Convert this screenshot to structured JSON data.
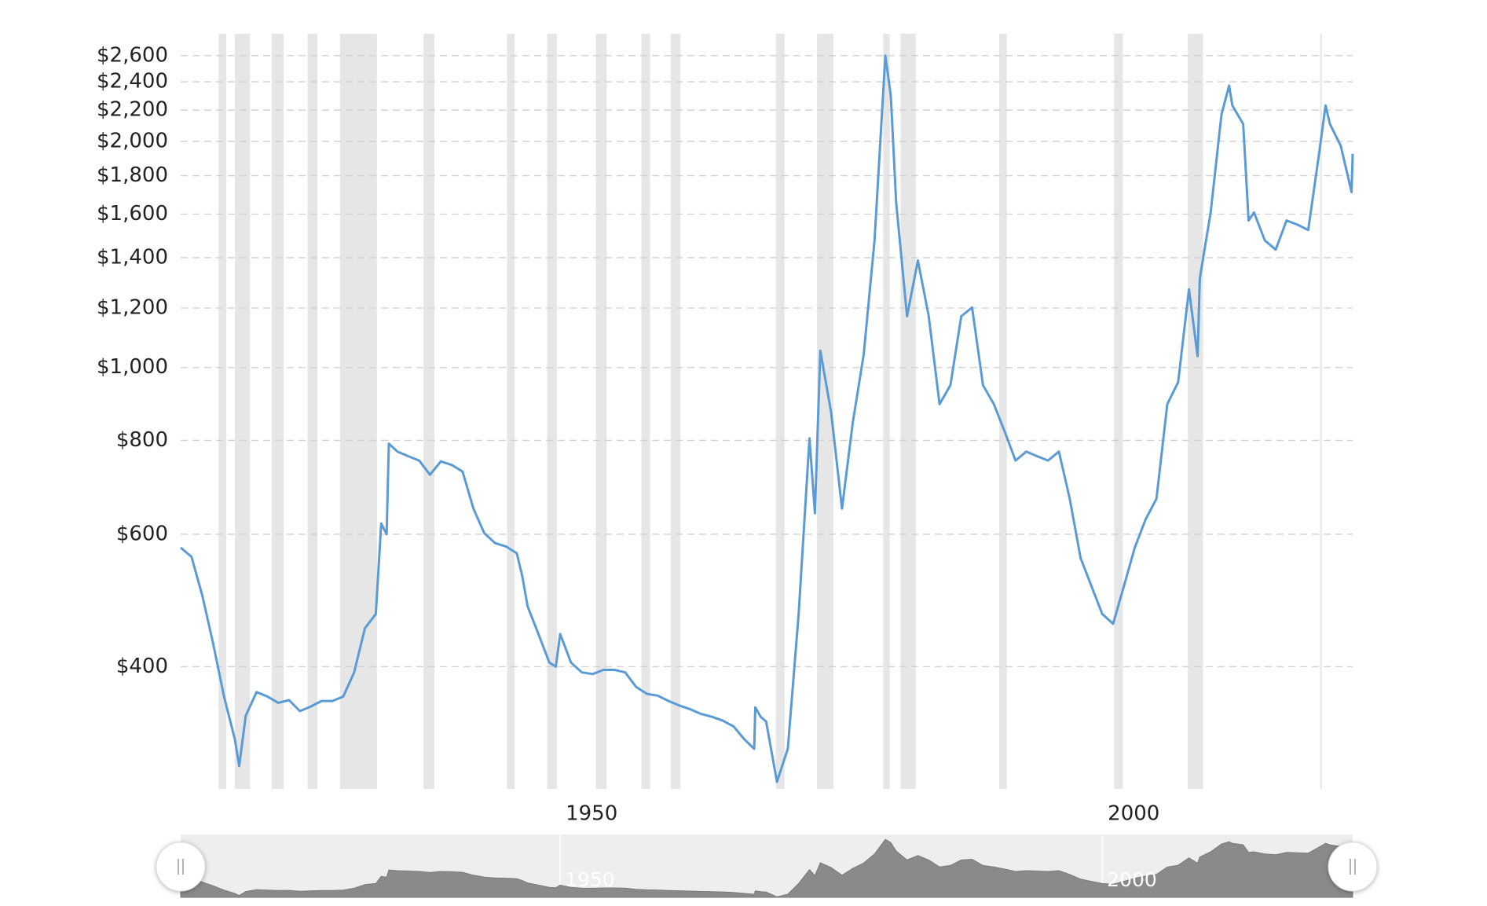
{
  "chart_data": {
    "type": "line",
    "color": "#5b9bd5",
    "log_scale": true,
    "grid": true,
    "xlim": [
      1915,
      2023.1
    ],
    "xticks": [
      1950,
      2000
    ],
    "ylim": [
      275,
      2780
    ],
    "yticks": [
      {
        "value": 400,
        "label": "$400"
      },
      {
        "value": 600,
        "label": "$600"
      },
      {
        "value": 800,
        "label": "$800"
      },
      {
        "value": 1000,
        "label": "$1,000"
      },
      {
        "value": 1200,
        "label": "$1,200"
      },
      {
        "value": 1400,
        "label": "$1,400"
      },
      {
        "value": 1600,
        "label": "$1,600"
      },
      {
        "value": 1800,
        "label": "$1,800"
      },
      {
        "value": 2000,
        "label": "$2,000"
      },
      {
        "value": 2200,
        "label": "$2,200"
      },
      {
        "value": 2400,
        "label": "$2,400"
      },
      {
        "value": 2600,
        "label": "$2,600"
      }
    ],
    "recession_color": "#e6e6e6",
    "recessions": [
      [
        1918.5,
        1919.2
      ],
      [
        1920.0,
        1921.4
      ],
      [
        1923.4,
        1924.5
      ],
      [
        1926.7,
        1927.6
      ],
      [
        1929.7,
        1933.1
      ],
      [
        1937.4,
        1938.4
      ],
      [
        1945.1,
        1945.8
      ],
      [
        1948.8,
        1949.7
      ],
      [
        1953.3,
        1954.3
      ],
      [
        1957.5,
        1958.3
      ],
      [
        1960.2,
        1961.1
      ],
      [
        1969.9,
        1970.7
      ],
      [
        1973.7,
        1975.2
      ],
      [
        1979.8,
        1980.4
      ],
      [
        1981.4,
        1982.8
      ],
      [
        1990.5,
        1991.2
      ],
      [
        2001.1,
        2001.9
      ],
      [
        2007.9,
        2009.3
      ],
      [
        2020.1,
        2020.25
      ]
    ],
    "x": [
      1915,
      1916,
      1917,
      1918,
      1919,
      1920,
      1920.4,
      1921,
      1922,
      1923,
      1924,
      1925,
      1926,
      1927,
      1928,
      1929,
      1930,
      1931,
      1932,
      1933,
      1933.5,
      1934,
      1934.2,
      1935,
      1936,
      1937,
      1938,
      1939,
      1940,
      1941,
      1942,
      1943,
      1944,
      1945,
      1946,
      1946.5,
      1947,
      1948,
      1949,
      1949.6,
      1950,
      1951,
      1952,
      1953,
      1954,
      1955,
      1956,
      1957,
      1958,
      1959,
      1960,
      1961,
      1962,
      1963,
      1964,
      1965,
      1966,
      1967,
      1967.9,
      1968.0,
      1968.5,
      1969,
      1970,
      1971,
      1972,
      1973,
      1973.5,
      1974,
      1975,
      1976,
      1977,
      1978,
      1979,
      1980,
      1980.5,
      1981,
      1982,
      1983,
      1984,
      1985,
      1986,
      1987,
      1988,
      1989,
      1990,
      1991,
      1992,
      1993,
      1994,
      1995,
      1996,
      1997,
      1998,
      1999,
      2000,
      2001,
      2002,
      2003,
      2004,
      2005,
      2006,
      2007,
      2008,
      2008.8,
      2009,
      2010,
      2011,
      2011.7,
      2012,
      2013,
      2013.5,
      2014,
      2015,
      2016,
      2017,
      2018,
      2019,
      2020,
      2020.6,
      2021,
      2022,
      2023,
      2023.1
    ],
    "values": [
      576,
      560,
      497,
      429,
      365,
      320,
      295,
      344,
      370,
      365,
      358,
      361,
      349,
      354,
      360,
      360,
      365,
      393,
      450,
      470,
      620,
      600,
      792,
      773,
      762,
      752,
      720,
      750,
      742,
      727,
      649,
      602,
      584,
      578,
      566,
      528,
      481,
      442,
      405,
      400,
      442,
      405,
      393,
      391,
      396,
      396,
      393,
      376,
      368,
      366,
      360,
      355,
      351,
      346,
      343,
      339,
      333,
      320,
      311,
      353,
      343,
      338,
      281,
      311,
      470,
      805,
      640,
      1053,
      871,
      649,
      846,
      1040,
      1476,
      2600,
      2300,
      1655,
      1170,
      1388,
      1170,
      894,
      947,
      1170,
      1202,
      947,
      894,
      822,
      752,
      773,
      762,
      752,
      773,
      669,
      558,
      512,
      470,
      456,
      512,
      576,
      628,
      669,
      894,
      956,
      1271,
      1035,
      1314,
      1608,
      2171,
      2372,
      2232,
      2109,
      1569,
      1608,
      1476,
      1435,
      1569,
      1549,
      1524,
      1925,
      2232,
      2109,
      1972,
      1712,
      1925
    ]
  }
}
